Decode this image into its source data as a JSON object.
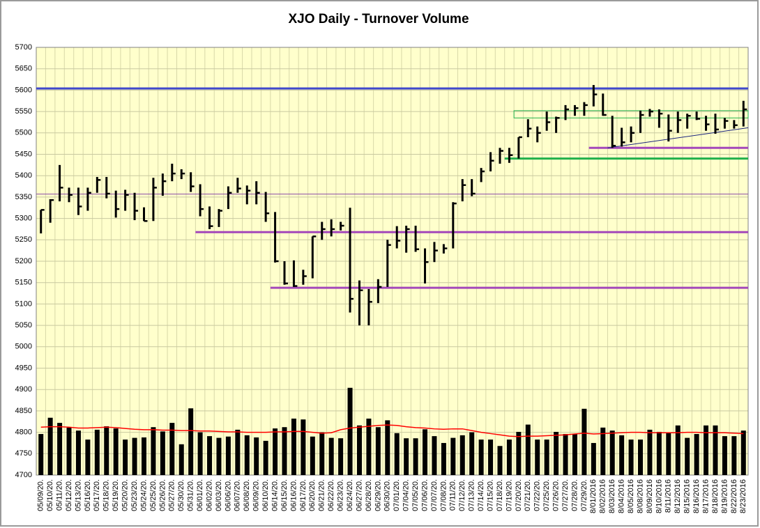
{
  "chart_data": {
    "type": "hlc",
    "title": "XJO Daily - Turnover Volume",
    "categories": [
      "05/09/20.",
      "05/10/20.",
      "05/11/20.",
      "05/12/20.",
      "05/13/20.",
      "05/16/20.",
      "05/17/20.",
      "05/18/20.",
      "05/19/20.",
      "05/20/20.",
      "05/23/20.",
      "05/24/20.",
      "05/25/20.",
      "05/26/20.",
      "05/27/20.",
      "05/30/20.",
      "05/31/20.",
      "06/01/20.",
      "06/02/20.",
      "06/03/20.",
      "06/06/20.",
      "06/07/20.",
      "06/08/20.",
      "06/09/20.",
      "06/10/20.",
      "06/14/20.",
      "06/15/20.",
      "06/16/20.",
      "06/17/20.",
      "06/20/20.",
      "06/21/20.",
      "06/22/20.",
      "06/23/20.",
      "06/24/20.",
      "06/27/20.",
      "06/28/20.",
      "06/29/20.",
      "06/30/20.",
      "07/01/20.",
      "07/04/20.",
      "07/05/20.",
      "07/06/20.",
      "07/07/20.",
      "07/08/20.",
      "07/11/20.",
      "07/12/20.",
      "07/13/20.",
      "07/14/20.",
      "07/15/20.",
      "07/18/20.",
      "07/19/20.",
      "07/20/20.",
      "07/21/20.",
      "07/22/20.",
      "07/25/20.",
      "07/26/20.",
      "07/27/20.",
      "07/28/20.",
      "07/29/20.",
      "8/01/2016",
      "8/02/2016",
      "8/03/2016",
      "8/04/2016",
      "8/05/2016",
      "8/08/2016",
      "8/09/2016",
      "8/10/2016",
      "8/11/2016",
      "8/12/2016",
      "8/15/2016",
      "8/16/2016",
      "8/17/2016",
      "8/18/2016",
      "8/19/2016",
      "8/22/2016",
      "8/23/2016"
    ],
    "high": [
      5320,
      5345,
      5425,
      5372,
      5372,
      5372,
      5397,
      5397,
      5365,
      5367,
      5360,
      5326,
      5395,
      5405,
      5428,
      5415,
      5408,
      5380,
      5328,
      5322,
      5375,
      5395,
      5377,
      5387,
      5362,
      5315,
      5200,
      5202,
      5180,
      5258,
      5292,
      5298,
      5292,
      5325,
      5155,
      5135,
      5158,
      5250,
      5282,
      5283,
      5283,
      5230,
      5245,
      5240,
      5338,
      5392,
      5392,
      5418,
      5455,
      5465,
      5465,
      5490,
      5532,
      5515,
      5550,
      5538,
      5565,
      5565,
      5572,
      5612,
      5592,
      5540,
      5512,
      5515,
      5552,
      5556,
      5555,
      5543,
      5550,
      5545,
      5550,
      5540,
      5545,
      5535,
      5530,
      5575
    ],
    "low": [
      5265,
      5290,
      5340,
      5338,
      5308,
      5318,
      5360,
      5347,
      5302,
      5318,
      5296,
      5294,
      5294,
      5353,
      5387,
      5392,
      5362,
      5305,
      5275,
      5280,
      5322,
      5360,
      5333,
      5333,
      5292,
      5197,
      5145,
      5140,
      5145,
      5160,
      5250,
      5258,
      5272,
      5080,
      5050,
      5050,
      5102,
      5140,
      5230,
      5220,
      5222,
      5148,
      5198,
      5218,
      5230,
      5340,
      5352,
      5385,
      5410,
      5428,
      5430,
      5440,
      5490,
      5478,
      5505,
      5500,
      5530,
      5540,
      5540,
      5562,
      5540,
      5465,
      5468,
      5478,
      5500,
      5538,
      5512,
      5480,
      5500,
      5510,
      5530,
      5505,
      5498,
      5510,
      5510,
      5515
    ],
    "close": [
      5320,
      5343,
      5372,
      5355,
      5328,
      5360,
      5390,
      5358,
      5322,
      5355,
      5318,
      5294,
      5372,
      5387,
      5405,
      5405,
      5375,
      5322,
      5282,
      5318,
      5360,
      5370,
      5365,
      5360,
      5312,
      5200,
      5148,
      5142,
      5165,
      5258,
      5275,
      5275,
      5283,
      5112,
      5132,
      5105,
      5140,
      5238,
      5248,
      5275,
      5228,
      5198,
      5225,
      5230,
      5335,
      5378,
      5358,
      5410,
      5435,
      5458,
      5448,
      5490,
      5510,
      5500,
      5525,
      5535,
      5555,
      5558,
      5565,
      5590,
      5542,
      5470,
      5478,
      5500,
      5542,
      5550,
      5545,
      5505,
      5530,
      5540,
      5533,
      5520,
      5508,
      5528,
      5518,
      5555
    ],
    "volume": [
      4796,
      4834,
      4822,
      4811,
      4804,
      4783,
      4806,
      4814,
      4809,
      4783,
      4787,
      4788,
      4812,
      4802,
      4822,
      4772,
      4856,
      4800,
      4791,
      4787,
      4790,
      4806,
      4793,
      4788,
      4780,
      4809,
      4812,
      4832,
      4830,
      4790,
      4800,
      4787,
      4786,
      4904,
      4816,
      4832,
      4812,
      4828,
      4798,
      4786,
      4786,
      4807,
      4791,
      4775,
      4787,
      4793,
      4800,
      4783,
      4783,
      4768,
      4783,
      4801,
      4818,
      4783,
      4783,
      4801,
      4796,
      4796,
      4855,
      4775,
      4811,
      4804,
      4793,
      4783,
      4783,
      4806,
      4801,
      4798,
      4816,
      4787,
      4796,
      4816,
      4816,
      4791,
      4791,
      4804
    ],
    "moving_average": [
      4812,
      4813,
      4813,
      4812,
      4810,
      4810,
      4811,
      4812,
      4811,
      4809,
      4807,
      4806,
      4806,
      4805,
      4805,
      4804,
      4804,
      4803,
      4803,
      4802,
      4801,
      4801,
      4800,
      4800,
      4800,
      4801,
      4801,
      4802,
      4802,
      4800,
      4798,
      4799,
      4806,
      4810,
      4812,
      4814,
      4816,
      4817,
      4816,
      4813,
      4811,
      4810,
      4808,
      4807,
      4808,
      4808,
      4804,
      4800,
      4797,
      4794,
      4791,
      4790,
      4791,
      4791,
      4792,
      4793,
      4794,
      4796,
      4798,
      4796,
      4797,
      4798,
      4799,
      4800,
      4800,
      4799,
      4799,
      4799,
      4799,
      4800,
      4800,
      4799,
      4799,
      4799,
      4798,
      4797
    ],
    "bar_color": "#000000",
    "ma_color": "#ff0000",
    "reference_lines": [
      {
        "value": 5604,
        "start": "05/09/20.",
        "color": "#3f48cc"
      },
      {
        "value": 5357,
        "start": "05/09/20.",
        "color": "#8a4aa8"
      },
      {
        "value": 5268,
        "start": "06/01/20.",
        "color": "#a347ba"
      },
      {
        "value": 5138,
        "start": "06/14/20.",
        "color": "#a347ba"
      },
      {
        "value": 5465,
        "start": "8/01/2016",
        "color": "#a347ba"
      },
      {
        "value": 5440,
        "start": "07/19/20.",
        "color": "#22b14c"
      }
    ],
    "band": {
      "low": 5535,
      "high": 5552,
      "start": "07/20/20.",
      "color": "#22b14c"
    },
    "trendline": {
      "start": "8/03/2016",
      "from": 5465,
      "to": 5512,
      "color": "#1a237e"
    },
    "ylim": [
      4700,
      5700
    ],
    "yticks": [
      4700,
      4750,
      4800,
      4850,
      4900,
      4950,
      5000,
      5050,
      5100,
      5150,
      5200,
      5250,
      5300,
      5350,
      5400,
      5450,
      5500,
      5550,
      5600,
      5650,
      5700
    ],
    "grid": true
  }
}
